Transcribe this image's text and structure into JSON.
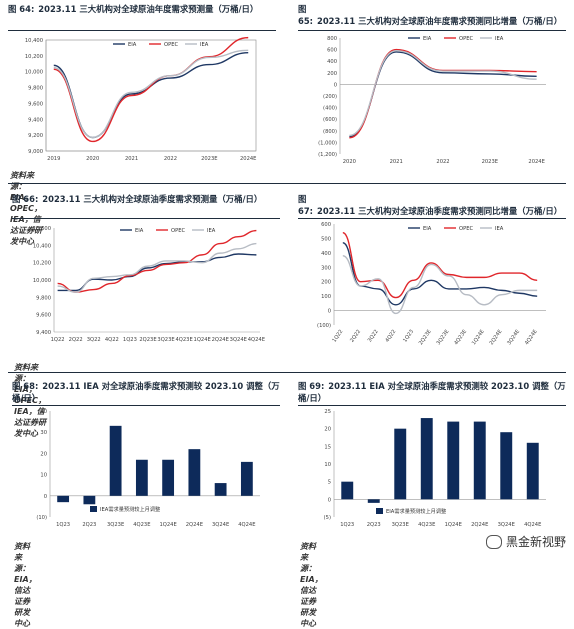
{
  "source_text": "资料来源：EIA，OPEC，IEA，信达证券研发中心",
  "source_text_2": "资料来源：EIA，信达证券研发中心",
  "watermark": "黑金新视野",
  "colors": {
    "eia": "#1f3864",
    "opec": "#e0262b",
    "iea": "#b7bcc4",
    "bar": "#0d2a5a"
  },
  "chart_data": [
    {
      "id": "c64",
      "type": "line",
      "number": "图 64:",
      "title": "2023.11 三大机构对全球原油年度需求预测量（万桶/日）",
      "x": [
        "2019",
        "2020",
        "2021",
        "2022",
        "2023E",
        "2024E"
      ],
      "ylim": [
        9000,
        10400
      ],
      "yticks": [
        "9,000",
        "9,200",
        "9,400",
        "9,600",
        "9,800",
        "10,000",
        "10,200",
        "10,400"
      ],
      "legend": [
        "EIA",
        "OPEC",
        "IEA"
      ],
      "series": [
        {
          "name": "EIA",
          "values": [
            10080,
            9170,
            9720,
            9920,
            10090,
            10240
          ]
        },
        {
          "name": "OPEC",
          "values": [
            10030,
            9120,
            9700,
            9950,
            10190,
            10430
          ]
        },
        {
          "name": "IEA",
          "values": [
            10050,
            9170,
            9740,
            9950,
            10180,
            10270
          ]
        }
      ]
    },
    {
      "id": "c65",
      "type": "line",
      "number": "图 65:",
      "title": "2023.11 三大机构对全球原油年度需求预测同比增量（万桶/日）",
      "x": [
        "2020",
        "2021",
        "2022",
        "2023E",
        "2024E"
      ],
      "ylim": [
        -1200,
        800
      ],
      "yticks": [
        "(1,200)",
        "(1,000)",
        "(800)",
        "(600)",
        "(400)",
        "(200)",
        "0",
        "200",
        "400",
        "600",
        "800"
      ],
      "legend": [
        "EIA",
        "OPEC",
        "IEA"
      ],
      "series": [
        {
          "name": "EIA",
          "values": [
            -900,
            560,
            200,
            180,
            140
          ]
        },
        {
          "name": "OPEC",
          "values": [
            -920,
            600,
            240,
            240,
            220
          ]
        },
        {
          "name": "IEA",
          "values": [
            -880,
            580,
            230,
            230,
            90
          ]
        }
      ]
    },
    {
      "id": "c66",
      "type": "line",
      "number": "图 66:",
      "title": "2023.11 三大机构对全球原油季度需求预测量（万桶/日）",
      "x": [
        "1Q22",
        "2Q22",
        "3Q22",
        "4Q22",
        "1Q23",
        "2Q23E",
        "3Q23E",
        "4Q23E",
        "1Q24E",
        "2Q24E",
        "3Q24E",
        "4Q24E"
      ],
      "ylim": [
        9400,
        10600
      ],
      "yticks": [
        "9,400",
        "9,600",
        "9,800",
        "10,000",
        "10,200",
        "10,400",
        "10,600"
      ],
      "legend": [
        "EIA",
        "OPEC",
        "IEA"
      ],
      "series": [
        {
          "name": "EIA",
          "values": [
            9880,
            9880,
            10010,
            10000,
            10040,
            10140,
            10190,
            10210,
            10210,
            10260,
            10300,
            10290
          ]
        },
        {
          "name": "OPEC",
          "values": [
            9960,
            9860,
            9890,
            9960,
            10050,
            10110,
            10180,
            10200,
            10290,
            10420,
            10500,
            10570
          ]
        },
        {
          "name": "IEA",
          "values": [
            9930,
            9860,
            10020,
            10040,
            10060,
            10160,
            10220,
            10220,
            10200,
            10310,
            10360,
            10420
          ]
        }
      ]
    },
    {
      "id": "c67",
      "type": "line",
      "number": "图 67:",
      "title": "2023.11 三大机构对全球原油季度需求预测同比增量（万桶/日）",
      "x": [
        "1Q22",
        "2Q22",
        "3Q22",
        "4Q22",
        "1Q23",
        "2Q23E",
        "3Q23E",
        "4Q23E",
        "1Q24E",
        "2Q24E",
        "3Q24E",
        "4Q24E"
      ],
      "ylim": [
        -100,
        600
      ],
      "yticks": [
        "(100)",
        "0",
        "100",
        "200",
        "300",
        "400",
        "500",
        "600"
      ],
      "legend": [
        "EIA",
        "OPEC",
        "IEA"
      ],
      "series": [
        {
          "name": "EIA",
          "values": [
            470,
            170,
            150,
            40,
            150,
            210,
            150,
            150,
            160,
            140,
            120,
            100
          ]
        },
        {
          "name": "OPEC",
          "values": [
            540,
            200,
            210,
            90,
            210,
            330,
            250,
            230,
            230,
            260,
            260,
            210
          ]
        },
        {
          "name": "IEA",
          "values": [
            380,
            170,
            220,
            -20,
            160,
            320,
            240,
            110,
            40,
            110,
            140,
            140
          ]
        }
      ]
    },
    {
      "id": "c68",
      "type": "bar",
      "number": "图 68:",
      "title": "2023.11 IEA 对全球原油季度需求预测较 2023.10 调整（万桶/日）",
      "categories": [
        "1Q23",
        "2Q23",
        "3Q23E",
        "4Q23E",
        "1Q24E",
        "2Q24E",
        "3Q24E",
        "4Q24E"
      ],
      "values": [
        -3,
        -4,
        33,
        17,
        17,
        22,
        6,
        16
      ],
      "ylim": [
        -10,
        40
      ],
      "yticks": [
        "(10)",
        "0",
        "10",
        "20",
        "30",
        "40"
      ],
      "legend": [
        "IEA需求量预测较上月调整"
      ]
    },
    {
      "id": "c69",
      "type": "bar",
      "number": "图 69:",
      "title": "2023.11 EIA 对全球原油季度需求预测较 2023.10 调整（万桶/日）",
      "categories": [
        "1Q23",
        "2Q23",
        "3Q23E",
        "4Q23E",
        "1Q24E",
        "2Q24E",
        "3Q24E",
        "4Q24E"
      ],
      "values": [
        5,
        -1,
        20,
        23,
        22,
        22,
        19,
        16
      ],
      "ylim": [
        -5,
        25
      ],
      "yticks": [
        "(5)",
        "0",
        "5",
        "10",
        "15",
        "20",
        "25"
      ],
      "legend": [
        "EIA需求量预测较上月调整"
      ]
    }
  ]
}
